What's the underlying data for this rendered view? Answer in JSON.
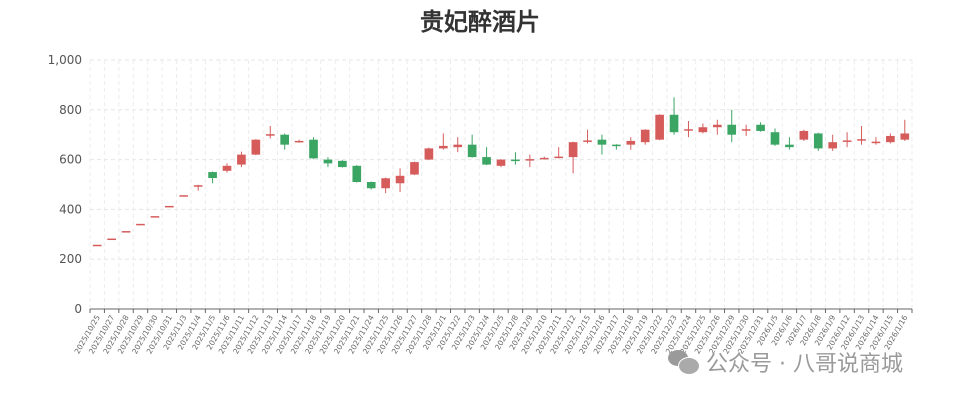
{
  "title": "贵妃醉酒片",
  "watermark": "公众号 · 八哥说商城",
  "chart_data": {
    "type": "candlestick",
    "title": "贵妃醉酒片",
    "ylim": [
      0,
      1000
    ],
    "yticks": [
      "0",
      "200",
      "400",
      "600",
      "800",
      "1,000"
    ],
    "ytick_values": [
      0,
      200,
      400,
      600,
      800,
      1000
    ],
    "grid": true,
    "colors": {
      "up": "#d65c5c",
      "down": "#3ba664"
    },
    "categories": [
      "2025/10/25",
      "2025/10/27",
      "2025/10/28",
      "2025/10/29",
      "2025/10/30",
      "2025/10/31",
      "2025/11/3",
      "2025/11/4",
      "2025/11/5",
      "2025/11/6",
      "2025/11/11",
      "2025/11/12",
      "2025/11/13",
      "2025/11/14",
      "2025/11/17",
      "2025/11/18",
      "2025/11/19",
      "2025/11/20",
      "2025/11/21",
      "2025/11/24",
      "2025/11/25",
      "2025/11/26",
      "2025/11/27",
      "2025/11/28",
      "2025/12/1",
      "2025/12/2",
      "2025/12/3",
      "2025/12/4",
      "2025/12/5",
      "2025/12/8",
      "2025/12/9",
      "2025/12/10",
      "2025/12/11",
      "2025/12/12",
      "2025/12/15",
      "2025/12/16",
      "2025/12/17",
      "2025/12/18",
      "2025/12/19",
      "2025/12/22",
      "2025/12/23",
      "2025/12/24",
      "2025/12/25",
      "2025/12/26",
      "2025/12/29",
      "2025/12/30",
      "2025/12/31",
      "2026/1/5",
      "2026/1/6",
      "2026/1/7",
      "2026/1/8",
      "2026/1/9",
      "2026/1/12",
      "2026/1/13",
      "2026/1/14",
      "2026/1/15",
      "2026/1/16"
    ],
    "ohlc": [
      [
        258,
        258,
        258,
        258
      ],
      [
        283,
        283,
        283,
        283
      ],
      [
        313,
        313,
        313,
        313
      ],
      [
        342,
        342,
        342,
        342
      ],
      [
        373,
        373,
        373,
        373
      ],
      [
        414,
        414,
        414,
        414
      ],
      [
        457,
        457,
        457,
        457
      ],
      [
        497,
        497,
        475,
        499
      ],
      [
        550,
        526,
        505,
        552
      ],
      [
        555,
        575,
        548,
        585
      ],
      [
        580,
        620,
        570,
        632
      ],
      [
        620,
        680,
        618,
        682
      ],
      [
        700,
        702,
        685,
        735
      ],
      [
        700,
        660,
        640,
        705
      ],
      [
        672,
        675,
        668,
        680
      ],
      [
        680,
        605,
        603,
        690
      ],
      [
        600,
        585,
        570,
        610
      ],
      [
        595,
        570,
        568,
        598
      ],
      [
        575,
        510,
        508,
        578
      ],
      [
        510,
        485,
        480,
        512
      ],
      [
        485,
        525,
        465,
        528
      ],
      [
        505,
        535,
        470,
        565
      ],
      [
        540,
        590,
        538,
        592
      ],
      [
        600,
        645,
        598,
        648
      ],
      [
        645,
        655,
        640,
        705
      ],
      [
        650,
        660,
        630,
        690
      ],
      [
        660,
        610,
        608,
        700
      ],
      [
        610,
        580,
        578,
        650
      ],
      [
        575,
        600,
        570,
        602
      ],
      [
        600,
        595,
        580,
        630
      ],
      [
        600,
        602,
        570,
        620
      ],
      [
        605,
        607,
        600,
        612
      ],
      [
        610,
        612,
        605,
        650
      ],
      [
        610,
        670,
        545,
        672
      ],
      [
        675,
        677,
        665,
        720
      ],
      [
        680,
        660,
        620,
        700
      ],
      [
        660,
        655,
        640,
        662
      ],
      [
        660,
        675,
        640,
        690
      ],
      [
        670,
        720,
        660,
        722
      ],
      [
        680,
        780,
        678,
        782
      ],
      [
        780,
        710,
        700,
        850
      ],
      [
        720,
        722,
        690,
        755
      ],
      [
        710,
        730,
        705,
        745
      ],
      [
        730,
        740,
        700,
        760
      ],
      [
        740,
        700,
        670,
        800
      ],
      [
        720,
        722,
        695,
        740
      ],
      [
        740,
        715,
        712,
        750
      ],
      [
        710,
        660,
        655,
        725
      ],
      [
        660,
        650,
        640,
        690
      ],
      [
        680,
        715,
        675,
        720
      ],
      [
        705,
        645,
        635,
        708
      ],
      [
        645,
        670,
        635,
        700
      ],
      [
        675,
        677,
        650,
        710
      ],
      [
        680,
        682,
        660,
        735
      ],
      [
        670,
        672,
        660,
        690
      ],
      [
        670,
        695,
        665,
        705
      ],
      [
        680,
        705,
        675,
        760
      ]
    ]
  }
}
